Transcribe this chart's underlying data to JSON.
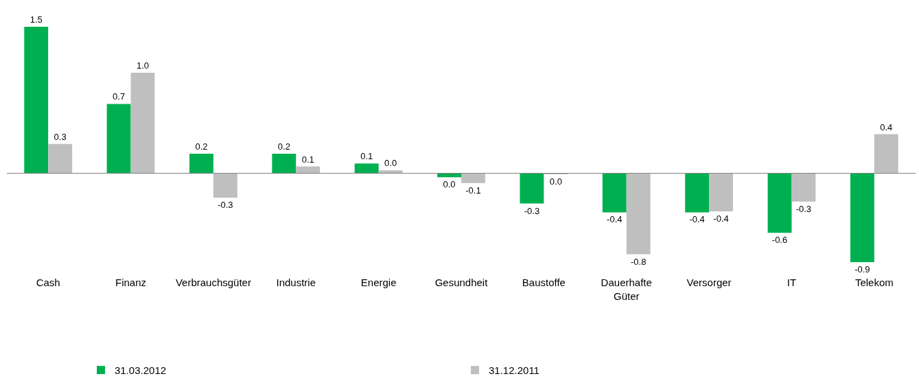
{
  "chart_data": {
    "type": "bar",
    "categories": [
      "Cash",
      "Finanz",
      "Verbrauchsgüter",
      "Industrie",
      "Energie",
      "Gesundheit",
      "Baustoffe",
      "Dauerhafte Güter",
      "Versorger",
      "IT",
      "Telekom"
    ],
    "series": [
      {
        "name": "31.03.2012",
        "color": "#00b050",
        "values": [
          1.5,
          0.71,
          0.2,
          0.2,
          0.1,
          -0.04,
          -0.31,
          -0.4,
          -0.4,
          -0.61,
          -0.91
        ],
        "value_labels": [
          "1.5",
          "0.7",
          "0.2",
          "0.2",
          "0.1",
          "0.0",
          "-0.3",
          "-0.4",
          "-0.4",
          "-0.6",
          "-0.9"
        ]
      },
      {
        "name": "31.12.2011",
        "color": "#bfbfbf",
        "values": [
          0.3,
          1.03,
          -0.25,
          0.07,
          0.03,
          -0.1,
          -0.01,
          -0.83,
          -0.39,
          -0.29,
          0.4
        ],
        "value_labels": [
          "0.3",
          "1.0",
          "-0.3",
          "0.1",
          "0.0",
          "-0.1",
          "0.0",
          "-0.8",
          "-0.4",
          "-0.3",
          "0.4"
        ]
      }
    ],
    "legend": "bottom",
    "grid": false
  }
}
